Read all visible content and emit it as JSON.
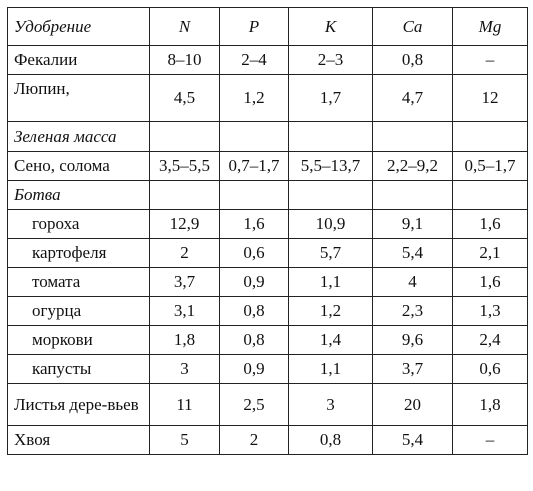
{
  "headers": [
    "Удобрение",
    "N",
    "P",
    "K",
    "Ca",
    "Mg"
  ],
  "rows": [
    {
      "name": "Фекалии",
      "values": [
        "8–10",
        "2–4",
        "2–3",
        "0,8",
        "–"
      ]
    },
    {
      "name": "Люпин,",
      "values": [
        "4,5",
        "1,2",
        "1,7",
        "4,7",
        "12"
      ]
    },
    {
      "name": "Зеленая масса",
      "values": [
        "",
        "",
        "",
        "",
        ""
      ]
    },
    {
      "name": "Сено, солома",
      "values": [
        "3,5–5,5",
        "0,7–1,7",
        "5,5–13,7",
        "2,2–9,2",
        "0,5–1,7"
      ]
    },
    {
      "name": "Ботва",
      "values": [
        "",
        "",
        "",
        "",
        ""
      ]
    },
    {
      "name": "гороха",
      "values": [
        "12,9",
        "1,6",
        "10,9",
        "9,1",
        "1,6"
      ]
    },
    {
      "name": "картофеля",
      "values": [
        "2",
        "0,6",
        "5,7",
        "5,4",
        "2,1"
      ]
    },
    {
      "name": "томата",
      "values": [
        "3,7",
        "0,9",
        "1,1",
        "4",
        "1,6"
      ]
    },
    {
      "name": "огурца",
      "values": [
        "3,1",
        "0,8",
        "1,2",
        "2,3",
        "1,3"
      ]
    },
    {
      "name": "моркови",
      "values": [
        "1,8",
        "0,8",
        "1,4",
        "9,6",
        "2,4"
      ]
    },
    {
      "name": "капусты",
      "values": [
        "3",
        "0,9",
        "1,1",
        "3,7",
        "0,6"
      ]
    },
    {
      "name": "Листья дере-вьев",
      "values": [
        "11",
        "2,5",
        "3",
        "20",
        "1,8"
      ]
    },
    {
      "name": "Хвоя",
      "values": [
        "5",
        "2",
        "0,8",
        "5,4",
        "–"
      ]
    }
  ]
}
